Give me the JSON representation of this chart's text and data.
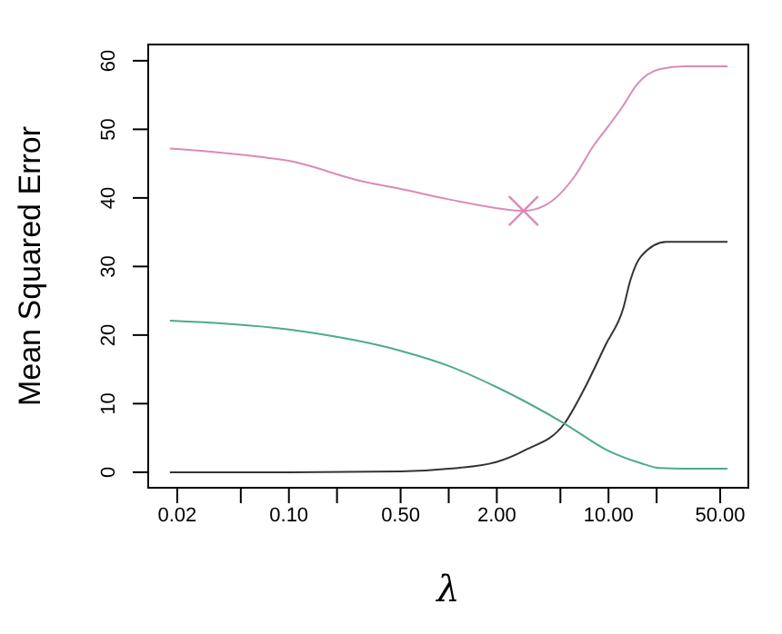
{
  "chart_data": {
    "type": "line",
    "xlabel": "λ",
    "ylabel": "Mean Squared Error",
    "log": "x",
    "marker": "none",
    "line_style": "solid",
    "xlim": [
      0.013,
      76
    ],
    "xticks": [
      0.02,
      {
        "value": 0.05,
        "label": null
      },
      {
        "value": 0.1,
        "label": "0.10"
      },
      {
        "value": 0.2,
        "label": null
      },
      {
        "value": 0.5,
        "label": "0.50"
      },
      {
        "value": 1,
        "label": null
      },
      {
        "value": 2,
        "label": "2.00"
      },
      {
        "value": 5,
        "label": null
      },
      {
        "value": 10,
        "label": "10.00"
      },
      {
        "value": 20,
        "label": null
      },
      {
        "value": 50,
        "label": "50.00"
      }
    ],
    "ylim": [
      -2.4,
      62.5
    ],
    "yticks": [
      0,
      10,
      20,
      30,
      40,
      50,
      60
    ],
    "series": [
      {
        "color": "#d98cb8",
        "x": [
          0.018,
          0.05,
          0.1,
          0.29,
          0.5,
          1,
          2,
          2.94,
          4,
          6.2,
          8,
          10,
          12.4,
          15,
          21,
          30,
          55.6
        ],
        "values": [
          47.2,
          46.3,
          45.4,
          42.4,
          41.3,
          39.8,
          38.5,
          38.1,
          38.9,
          43.3,
          47.5,
          50.5,
          53.5,
          56.5,
          58.8,
          59.2,
          59.2
        ]
      },
      {
        "color": "#333333",
        "x": [
          0.018,
          0.1,
          0.5,
          1,
          2,
          3,
          5.3,
          7,
          9.6,
          12.4,
          13.7,
          16,
          23,
          30,
          55.6
        ],
        "values": [
          0,
          0,
          0.1,
          0.5,
          1.5,
          3.2,
          7.1,
          12,
          18.6,
          24,
          28,
          31.5,
          33.6,
          33.6,
          33.6
        ]
      },
      {
        "color": "#4dab88",
        "x": [
          0.018,
          0.1,
          0.5,
          1,
          2,
          5.3,
          10,
          16,
          21,
          30,
          55.6
        ],
        "values": [
          22.1,
          20.8,
          17.7,
          15.5,
          12.4,
          7.1,
          3.1,
          1.3,
          0.6,
          0.5,
          0.5
        ]
      },
      {
        "type": "scatter",
        "marker": "cross",
        "color": "#d98cb8",
        "x": [
          2.94
        ],
        "values": [
          38.1
        ]
      }
    ]
  }
}
